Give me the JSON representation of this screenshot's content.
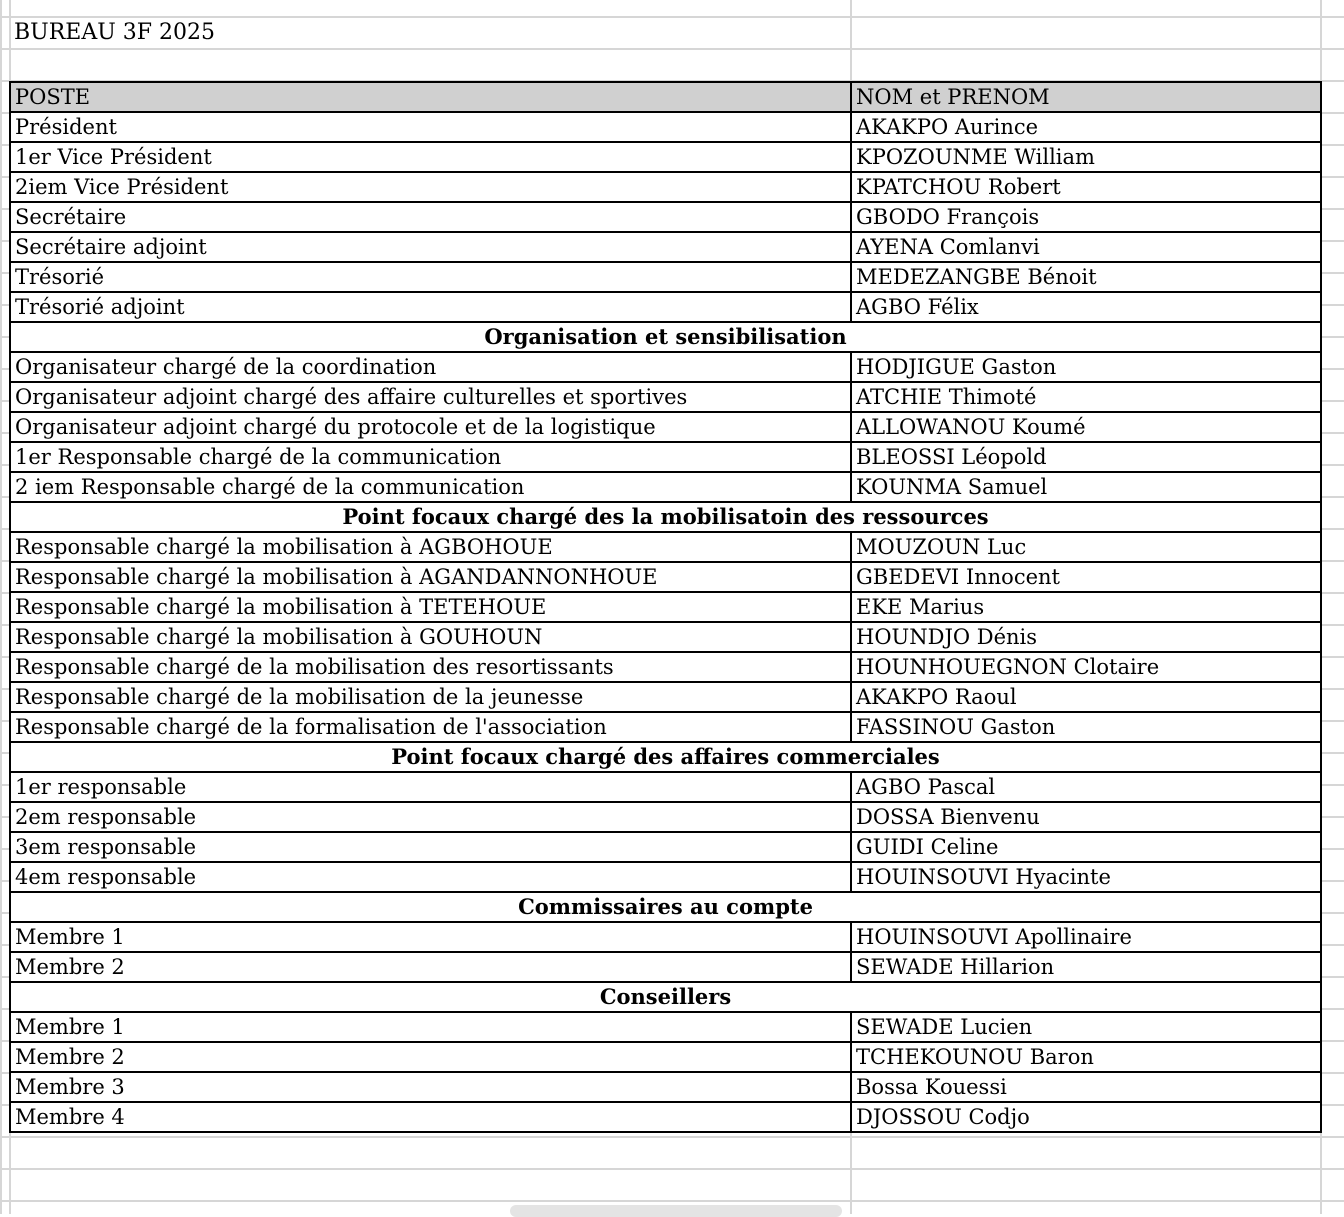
{
  "title": "BUREAU 3F 2025",
  "headers": {
    "poste": "POSTE",
    "nom": "NOM et PRENOM"
  },
  "rows": [
    {
      "poste": "Président",
      "nom": "AKAKPO Aurince"
    },
    {
      "poste": "1er Vice Président",
      "nom": "KPOZOUNME William"
    },
    {
      "poste": "2iem Vice Président",
      "nom": "KPATCHOU Robert"
    },
    {
      "poste": "Secrétaire",
      "nom": "GBODO François"
    },
    {
      "poste": "Secrétaire adjoint",
      "nom": "AYENA Comlanvi"
    },
    {
      "poste": "Trésorié",
      "nom": "MEDEZANGBE Bénoit"
    },
    {
      "poste": "Trésorié adjoint",
      "nom": "AGBO Félix"
    },
    {
      "section": "Organisation et sensibilisation"
    },
    {
      "poste": "Organisateur chargé de la coordination",
      "nom": "HODJIGUE Gaston"
    },
    {
      "poste": "Organisateur adjoint chargé des affaire culturelles et sportives",
      "nom": "ATCHIE Thimoté"
    },
    {
      "poste": "Organisateur adjoint chargé du protocole et de la logistique",
      "nom": "ALLOWANOU Koumé"
    },
    {
      "poste": "1er Responsable chargé de la communication",
      "nom": "BLEOSSI Léopold"
    },
    {
      "poste": "2 iem Responsable chargé de la communication",
      "nom": "KOUNMA Samuel"
    },
    {
      "section": "Point focaux chargé des la mobilisatoin des ressources"
    },
    {
      "poste": "Responsable chargé la mobilisation à AGBOHOUE",
      "nom": "MOUZOUN Luc"
    },
    {
      "poste": "Responsable chargé la mobilisation à AGANDANNONHOUE",
      "nom": "GBEDEVI Innocent"
    },
    {
      "poste": "Responsable chargé la mobilisation à TETEHOUE",
      "nom": "EKE Marius"
    },
    {
      "poste": "Responsable chargé la mobilisation à GOUHOUN",
      "nom": "HOUNDJO Dénis"
    },
    {
      "poste": "Responsable chargé de la mobilisation des resortissants",
      "nom": "HOUNHOUEGNON Clotaire"
    },
    {
      "poste": "Responsable chargé de la mobilisation de la jeunesse",
      "nom": "AKAKPO Raoul"
    },
    {
      "poste": "Responsable chargé de la formalisation de l'association",
      "nom": "FASSINOU Gaston"
    },
    {
      "section": "Point focaux chargé des affaires commerciales"
    },
    {
      "poste": "1er responsable",
      "nom": "AGBO Pascal"
    },
    {
      "poste": "2em responsable",
      "nom": "DOSSA Bienvenu"
    },
    {
      "poste": "3em responsable",
      "nom": "GUIDI Celine"
    },
    {
      "poste": "4em responsable",
      "nom": "HOUINSOUVI Hyacinte"
    },
    {
      "section": "Commissaires au compte"
    },
    {
      "poste": "Membre 1",
      "nom": "HOUINSOUVI Apollinaire"
    },
    {
      "poste": "Membre 2",
      "nom": "SEWADE Hillarion"
    },
    {
      "section": "Conseillers"
    },
    {
      "poste": "Membre 1",
      "nom": "SEWADE Lucien"
    },
    {
      "poste": "Membre 2",
      "nom": "TCHEKOUNOU Baron"
    },
    {
      "poste": "Membre 3",
      "nom": "Bossa Kouessi"
    },
    {
      "poste": "Membre 4",
      "nom": "DJOSSOU Codjo"
    }
  ]
}
